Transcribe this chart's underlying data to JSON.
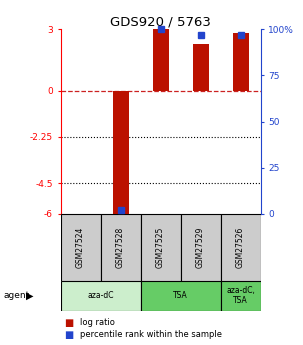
{
  "title": "GDS920 / 5763",
  "samples": [
    "GSM27524",
    "GSM27528",
    "GSM27525",
    "GSM27529",
    "GSM27526"
  ],
  "log_ratios": [
    0.0,
    -6.1,
    3.0,
    2.3,
    2.8
  ],
  "percentile_ranks": [
    null,
    2.0,
    100.0,
    97.0,
    97.0
  ],
  "ylim_left": [
    -6,
    3
  ],
  "ylim_right": [
    0,
    100
  ],
  "yticks_left": [
    -6,
    -4.5,
    -2.25,
    0,
    3
  ],
  "yticks_left_labels": [
    "-6",
    "-4.5",
    "-2.25",
    "0",
    "3"
  ],
  "yticks_right": [
    0,
    25,
    50,
    75,
    100
  ],
  "yticks_right_labels": [
    "0",
    "25",
    "50",
    "75",
    "100%"
  ],
  "hline_zero_color": "#cc2222",
  "hlines_dotted": [
    -2.25,
    -4.5
  ],
  "bar_color": "#bb1100",
  "percentile_color": "#2244cc",
  "groups": [
    {
      "label": "aza-dC",
      "cols": [
        0,
        1
      ],
      "color": "#cceecc"
    },
    {
      "label": "TSA",
      "cols": [
        2,
        3
      ],
      "color": "#66cc66"
    },
    {
      "label": "aza-dC,\nTSA",
      "cols": [
        4
      ],
      "color": "#66cc66"
    }
  ],
  "legend_items": [
    {
      "color": "#bb1100",
      "label": "log ratio"
    },
    {
      "color": "#2244cc",
      "label": "percentile rank within the sample"
    }
  ],
  "bar_width": 0.4,
  "sample_area_bg": "#cccccc",
  "percentile_marker_size": 5
}
